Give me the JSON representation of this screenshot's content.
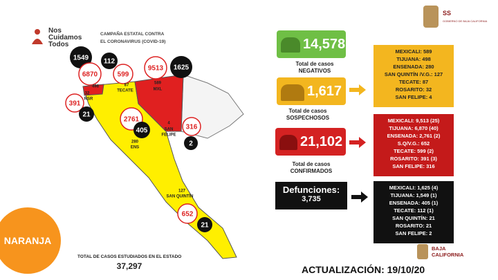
{
  "header": {
    "logo": [
      "Nos",
      "Cuidamos",
      "Todos"
    ],
    "campaign": [
      "CAMPAÑA ESTATAL CONTRA",
      "EL CORONAVIRUS (COVID-19)"
    ],
    "agency": "SS",
    "agency_sub": "GOBIERNO DE BAJA CALIFORNIA"
  },
  "map": {
    "labels": [
      "1549",
      "112",
      "6870",
      "599",
      "9513",
      "1625",
      "498",
      "87",
      "TECATE",
      "32",
      "RSR",
      "391",
      "21",
      "589",
      "MXL",
      "2761",
      "405",
      "280",
      "ENS",
      "4",
      "SAN",
      "FELIPE",
      "316",
      "2",
      "127",
      "SAN QUINTÍN",
      "652",
      "21"
    ]
  },
  "semaphore": "NARANJA",
  "total_studied": {
    "label": "TOTAL DE CASOS ESTUDIADOS EN EL ESTADO",
    "value": "37,297"
  },
  "summary": [
    {
      "value": "14,578",
      "label": [
        "Total de casos",
        "NEGATIVOS"
      ]
    },
    {
      "value": "1,617",
      "label": [
        "Total de casos",
        "SOSPECHOSOS"
      ]
    },
    {
      "value": "21,102",
      "label": [
        "Total de casos",
        "CONFIRMADOS"
      ]
    }
  ],
  "deaths": {
    "label": "Defunciones:",
    "value": "3,735"
  },
  "breakdowns": [
    {
      "lines": [
        "MEXICALI: 589",
        "TIJUANA: 498",
        "ENSENADA: 280",
        "SAN QUINTÍN /V.G.: 127",
        "TECATE: 87",
        "ROSARITO: 32",
        "SAN FELIPE: 4"
      ]
    },
    {
      "lines": [
        "MEXICALI: 9,513 (25)",
        "TIJUANA: 6,870 (40)",
        "ENSENADA: 2,761 (2)",
        "S.Q/V.G.: 652",
        "TECATE: 599 (2)",
        "ROSARITO: 391 (3)",
        "SAN FELIPE: 316"
      ]
    },
    {
      "lines": [
        "MEXICALI: 1,625 (4)",
        "TIJUANA: 1,549 (1)",
        "ENSENADA: 405 (1)",
        "TECATE: 112 (1)",
        "SAN QUINTÍN: 21",
        "ROSARITO: 21",
        "SAN FELIPE: 2"
      ]
    }
  ],
  "footer": {
    "brand": [
      "BAJA",
      "CALIFORNIA"
    ],
    "update": "ACTUALIZACIÓN: 19/10/20"
  }
}
